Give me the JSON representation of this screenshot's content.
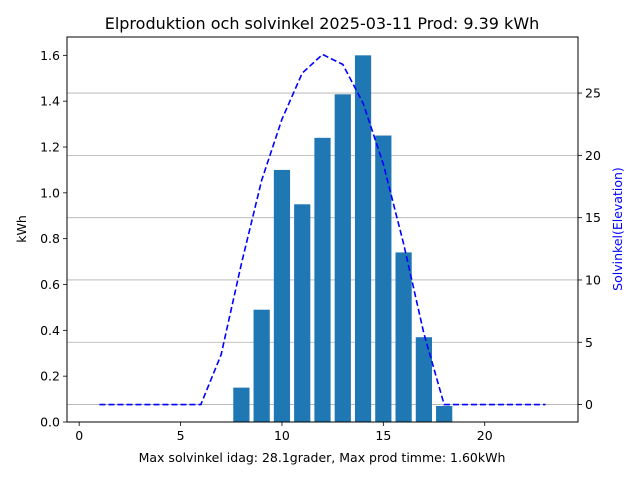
{
  "chart_data": {
    "type": "bar",
    "title": "Elproduktion och solvinkel 2025-03-11 Prod: 9.39 kWh",
    "xlabel": "Max solvinkel idag: 28.1grader, Max prod timme: 1.60kWh",
    "ylabel": "kWh",
    "y2label": "Solvinkel(Elevation)",
    "xlim": [
      -0.6,
      24.6
    ],
    "ylim": [
      0,
      1.68
    ],
    "y2lim": [
      -1.4,
      29.5
    ],
    "xticks": [
      0,
      5,
      10,
      15,
      20
    ],
    "yticks": [
      0.0,
      0.2,
      0.4,
      0.6,
      0.8,
      1.0,
      1.2,
      1.4,
      1.6
    ],
    "y2ticks": [
      0,
      5,
      10,
      15,
      20,
      25
    ],
    "y2grid": true,
    "bar_color": "#1f77b4",
    "line_color": "#0000ff",
    "bars": {
      "x": [
        8,
        9,
        10,
        11,
        12,
        13,
        14,
        15,
        16,
        17,
        18
      ],
      "values": [
        0.15,
        0.49,
        1.1,
        0.95,
        1.24,
        1.43,
        1.6,
        1.25,
        0.74,
        0.37,
        0.07
      ]
    },
    "series": [
      {
        "style": "dashed",
        "axis": "right",
        "x": [
          1,
          2,
          3,
          4,
          5,
          6,
          7,
          8,
          9,
          10,
          11,
          12,
          13,
          14,
          15,
          16,
          17,
          18,
          19,
          20,
          21,
          22,
          23
        ],
        "values": [
          0,
          0,
          0,
          0,
          0,
          0,
          4,
          11.3,
          18,
          22.9,
          26.6,
          28.1,
          27.3,
          24.2,
          19.3,
          12.9,
          5.7,
          0,
          0,
          0,
          0,
          0,
          0
        ]
      }
    ]
  }
}
